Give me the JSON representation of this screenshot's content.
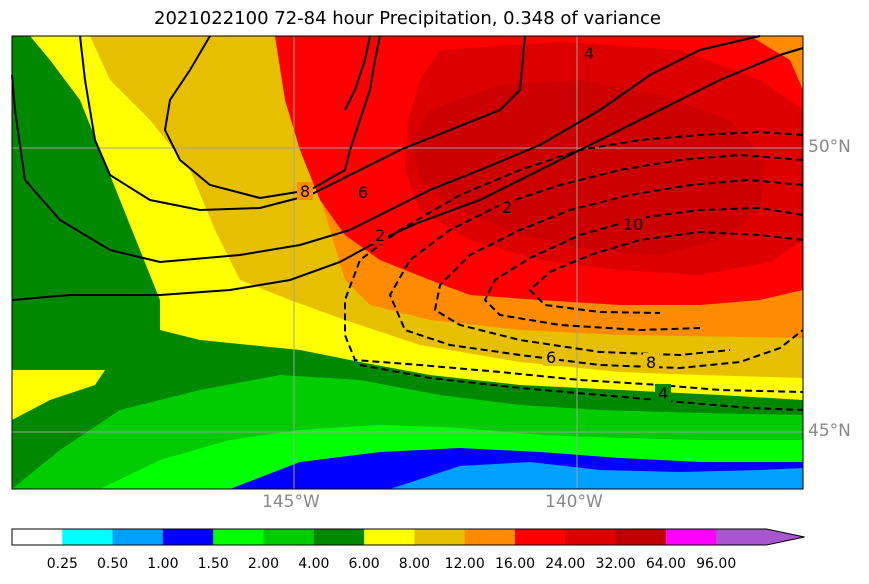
{
  "title": "2021022100 72-84 hour Precipitation, 0.348 of variance",
  "chart_data": {
    "type": "contour_map",
    "title": "2021022100 72-84 hour Precipitation, 0.348 of variance",
    "variable": "Precipitation",
    "region": {
      "lon_range": [
        -149.7,
        -135.7
      ],
      "lat_range": [
        44.0,
        52.0
      ]
    },
    "lon_ticks": [
      {
        "value": -145,
        "label": "145°W"
      },
      {
        "value": -140,
        "label": "140°W"
      }
    ],
    "lat_ticks": [
      {
        "value": 50,
        "label": "50°N"
      },
      {
        "value": 45,
        "label": "45°N"
      }
    ],
    "colorbar": {
      "levels": [
        "0.25",
        "0.50",
        "1.00",
        "1.50",
        "2.00",
        "4.00",
        "6.00",
        "8.00",
        "12.00",
        "16.00",
        "24.00",
        "32.00",
        "64.00",
        "96.00"
      ],
      "colors": [
        "#ffffff",
        "#00ffff",
        "#00a0ff",
        "#0000ff",
        "#00ff00",
        "#00cc00",
        "#008800",
        "#ffff00",
        "#e6c000",
        "#ff8c00",
        "#ff0000",
        "#dd0000",
        "#c00000",
        "#ff00ff",
        "#a855d0"
      ],
      "extend": "max"
    },
    "contour_labels": {
      "solid": [
        "8",
        "6",
        "2",
        "4"
      ],
      "dashed": [
        "2",
        "10",
        "6",
        "8",
        "4"
      ]
    },
    "grid": true
  }
}
